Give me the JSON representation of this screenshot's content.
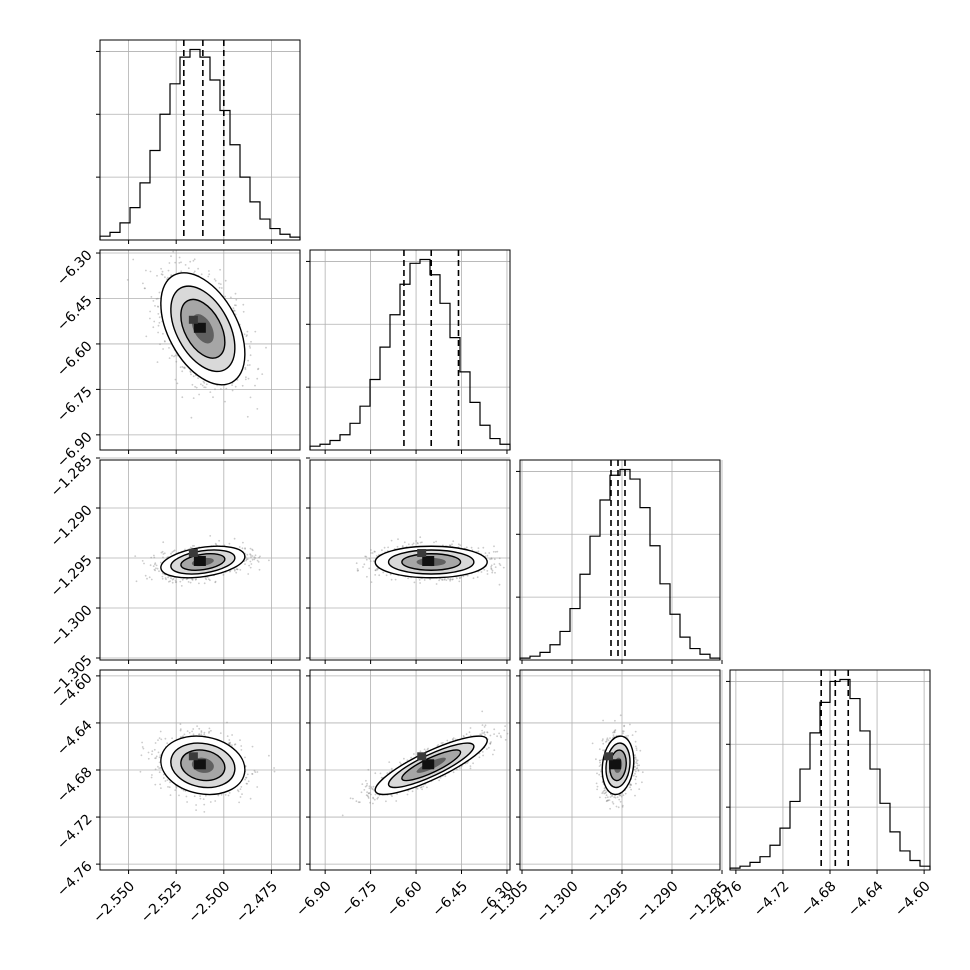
{
  "chart_data": {
    "type": "corner",
    "description_of_panels": "lower-triangle 2D histograms with scattered samples and contours, diagonal 1D histograms with dashed quantile lines",
    "parameters": [
      {
        "range": [
          -2.565,
          -2.46
        ],
        "ticks": [
          -2.55,
          -2.525,
          -2.5,
          -2.475
        ],
        "tick_labels": [
          "−2.550",
          "−2.525",
          "−2.500",
          "−2.475"
        ],
        "quantiles": [
          -2.521,
          -2.511,
          -2.5
        ],
        "mean": -2.511,
        "std": 0.0105,
        "hist_counts": [
          0.02,
          0.04,
          0.09,
          0.17,
          0.3,
          0.47,
          0.66,
          0.82,
          0.96,
          1.0,
          0.96,
          0.84,
          0.68,
          0.5,
          0.33,
          0.2,
          0.11,
          0.06,
          0.03,
          0.015
        ]
      },
      {
        "range": [
          -6.95,
          -6.29
        ],
        "ticks": [
          -6.9,
          -6.75,
          -6.6,
          -6.45,
          -6.3
        ],
        "tick_labels": [
          "−6.90",
          "−6.75",
          "−6.60",
          "−6.45",
          "−6.30"
        ],
        "quantiles": [
          -6.64,
          -6.55,
          -6.46
        ],
        "mean": -6.55,
        "std": 0.088,
        "hist_counts": [
          0.02,
          0.03,
          0.05,
          0.08,
          0.14,
          0.23,
          0.37,
          0.54,
          0.71,
          0.87,
          0.98,
          1.0,
          0.92,
          0.77,
          0.59,
          0.41,
          0.25,
          0.13,
          0.06,
          0.03
        ]
      },
      {
        "range": [
          -1.3052,
          -1.2852
        ],
        "ticks": [
          -1.305,
          -1.3,
          -1.295,
          -1.29,
          -1.285
        ],
        "tick_labels": [
          "−1.305",
          "−1.300",
          "−1.295",
          "−1.290",
          "−1.285"
        ],
        "quantiles": [
          -1.2961,
          -1.2954,
          -1.2947
        ],
        "mean": -1.2954,
        "std": 0.00075,
        "hist_counts": [
          0.01,
          0.02,
          0.04,
          0.08,
          0.15,
          0.27,
          0.45,
          0.65,
          0.84,
          0.97,
          1.0,
          0.95,
          0.8,
          0.6,
          0.4,
          0.24,
          0.12,
          0.06,
          0.03,
          0.01
        ]
      },
      {
        "range": [
          -4.765,
          -4.595
        ],
        "ticks": [
          -4.76,
          -4.72,
          -4.68,
          -4.64,
          -4.6
        ],
        "tick_labels": [
          "−4.76",
          "−4.72",
          "−4.68",
          "−4.64",
          "−4.60"
        ],
        "quantiles": [
          -4.6875,
          -4.6755,
          -4.6645
        ],
        "mean": -4.676,
        "std": 0.0118,
        "hist_counts": [
          0.01,
          0.02,
          0.04,
          0.07,
          0.13,
          0.22,
          0.36,
          0.53,
          0.72,
          0.88,
          0.99,
          1.0,
          0.9,
          0.73,
          0.53,
          0.35,
          0.2,
          0.1,
          0.05,
          0.02
        ]
      }
    ],
    "correlations": {
      "1-0": -0.45,
      "2-0": 0.35,
      "2-1": 0.0,
      "3-0": -0.15,
      "3-1": 0.85,
      "3-2": 0.15
    },
    "grid": true,
    "colors": {
      "line": "#000000",
      "grid": "#b0b0b0",
      "scatter": "#8c8c8c"
    }
  }
}
